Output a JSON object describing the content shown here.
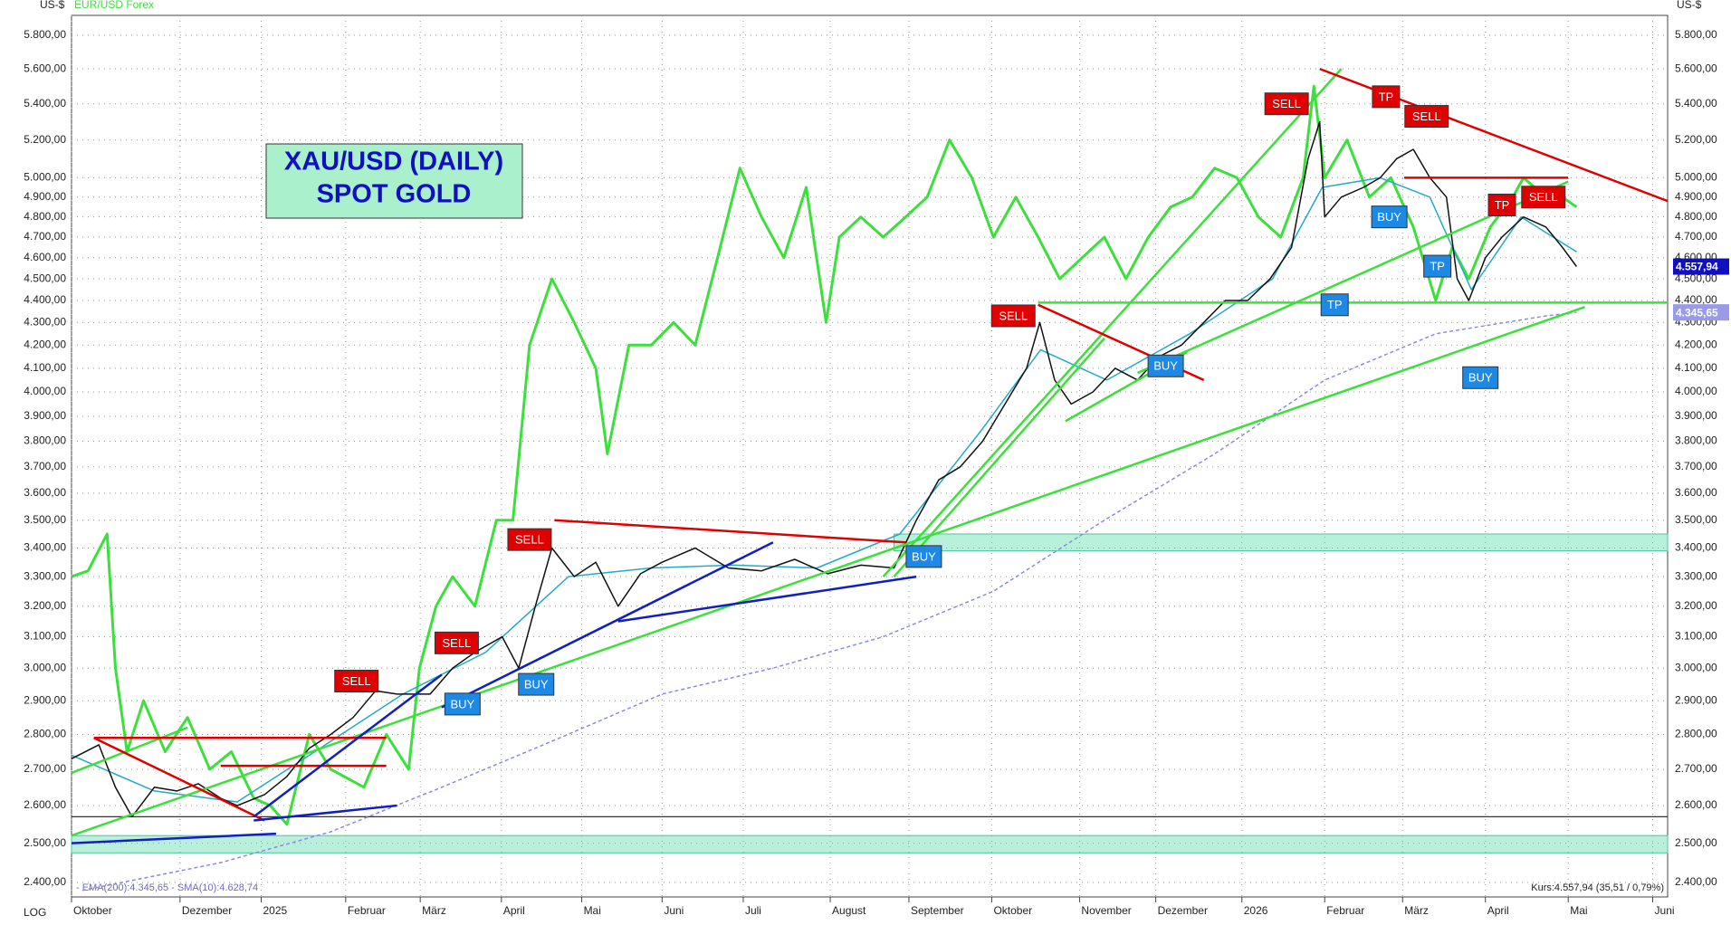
{
  "chart_data": {
    "type": "financial",
    "title": "XAU/USD (DAILY)",
    "subtitle": "SPOT GOLD",
    "y_unit": "US-$",
    "scale_label": "LOG",
    "indicator_legend": "- EMA(200):4.345,65 - SMA(10):4.628,74",
    "quote": "Kurs:4.557,94 (35,51 / 0,79%)",
    "log_scale": true,
    "grid": true,
    "xlim": [
      0,
      19.27
    ],
    "ylim": [
      2364,
      5921
    ],
    "xticks": [
      {
        "value": 0,
        "label": "Oktober"
      },
      {
        "value": 1.31,
        "label": "Dezember"
      },
      {
        "value": 2.29,
        "label": "2025"
      },
      {
        "value": 3.31,
        "label": "Februar"
      },
      {
        "value": 4.21,
        "label": "März"
      },
      {
        "value": 5.19,
        "label": "April"
      },
      {
        "value": 6.16,
        "label": "Mai"
      },
      {
        "value": 7.13,
        "label": "Juni"
      },
      {
        "value": 8.11,
        "label": "Juli"
      },
      {
        "value": 9.16,
        "label": "August"
      },
      {
        "value": 10.11,
        "label": "September"
      },
      {
        "value": 11.11,
        "label": "Oktober"
      },
      {
        "value": 12.17,
        "label": "November"
      },
      {
        "value": 13.09,
        "label": "Dezember"
      },
      {
        "value": 14.13,
        "label": "2026"
      },
      {
        "value": 15.13,
        "label": "Februar"
      },
      {
        "value": 16.07,
        "label": "März"
      },
      {
        "value": 17.07,
        "label": "April"
      },
      {
        "value": 18.07,
        "label": "Mai"
      },
      {
        "value": 19.09,
        "label": "Juni"
      }
    ],
    "yticks": [
      {
        "value": 2400,
        "label": "2.400,00"
      },
      {
        "value": 2500,
        "label": "2.500,00"
      },
      {
        "value": 2600,
        "label": "2.600,00"
      },
      {
        "value": 2700,
        "label": "2.700,00"
      },
      {
        "value": 2800,
        "label": "2.800,00"
      },
      {
        "value": 2900,
        "label": "2.900,00"
      },
      {
        "value": 3000,
        "label": "3.000,00"
      },
      {
        "value": 3100,
        "label": "3.100,00"
      },
      {
        "value": 3200,
        "label": "3.200,00"
      },
      {
        "value": 3300,
        "label": "3.300,00"
      },
      {
        "value": 3400,
        "label": "3.400,00"
      },
      {
        "value": 3500,
        "label": "3.500,00"
      },
      {
        "value": 3600,
        "label": "3.600,00"
      },
      {
        "value": 3700,
        "label": "3.700,00"
      },
      {
        "value": 3800,
        "label": "3.800,00"
      },
      {
        "value": 3900,
        "label": "3.900,00"
      },
      {
        "value": 4000,
        "label": "4.000,00"
      },
      {
        "value": 4100,
        "label": "4.100,00"
      },
      {
        "value": 4200,
        "label": "4.200,00"
      },
      {
        "value": 4300,
        "label": "4.300,00"
      },
      {
        "value": 4400,
        "label": "4.400,00"
      },
      {
        "value": 4500,
        "label": "4.500,00"
      },
      {
        "value": 4600,
        "label": "4.600,00"
      },
      {
        "value": 4700,
        "label": "4.700,00"
      },
      {
        "value": 4800,
        "label": "4.800,00"
      },
      {
        "value": 4900,
        "label": "4.900,00"
      },
      {
        "value": 5000,
        "label": "5.000,00"
      },
      {
        "value": 5200,
        "label": "5.200,00"
      },
      {
        "value": 5400,
        "label": "5.400,00"
      },
      {
        "value": 5600,
        "label": "5.600,00"
      },
      {
        "value": 5800,
        "label": "5.800,00"
      }
    ],
    "zones": [
      {
        "color": "#b8f0dc",
        "x": [
          9.93,
          19.27
        ],
        "y": [
          3390,
          3450
        ]
      },
      {
        "color": "#b8f0dc",
        "x": [
          0,
          19.27
        ],
        "y": [
          2475,
          2520
        ]
      }
    ],
    "hlines": [
      {
        "color": "#333333",
        "y": 2570
      }
    ],
    "series": [
      {
        "name": "EUR/USD Forex",
        "color": "#3be03b",
        "width": 3,
        "x": [
          0,
          0.2,
          0.43,
          0.53,
          0.67,
          0.87,
          1.13,
          1.4,
          1.67,
          1.93,
          2.2,
          2.4,
          2.6,
          2.87,
          3.13,
          3.53,
          3.8,
          4.07,
          4.2,
          4.4,
          4.6,
          4.87,
          5.13,
          5.33,
          5.53,
          5.8,
          6.07,
          6.33,
          6.47,
          6.73,
          7,
          7.27,
          7.53,
          7.8,
          8.07,
          8.33,
          8.6,
          8.87,
          9.11,
          9.27,
          9.53,
          9.8,
          10.07,
          10.33,
          10.6,
          10.87,
          11.13,
          11.4,
          11.67,
          11.93,
          12.2,
          12.47,
          12.73,
          13,
          13.27,
          13.53,
          13.8,
          14.07,
          14.33,
          14.6,
          14.87,
          15,
          15.13,
          15.4,
          15.67,
          15.93,
          16.2,
          16.47,
          16.67,
          16.87,
          17.13,
          17.4,
          17.53,
          17.8,
          18,
          18.17
        ],
        "values": [
          3300,
          3320,
          3450,
          3000,
          2750,
          2900,
          2750,
          2850,
          2700,
          2750,
          2620,
          2600,
          2550,
          2800,
          2700,
          2650,
          2800,
          2700,
          3000,
          3200,
          3300,
          3200,
          3500,
          3500,
          4200,
          4500,
          4300,
          4100,
          3750,
          4200,
          4200,
          4300,
          4200,
          4600,
          5050,
          4800,
          4600,
          4950,
          4300,
          4700,
          4800,
          4700,
          4800,
          4900,
          5200,
          5000,
          4700,
          4900,
          4700,
          4500,
          4600,
          4700,
          4500,
          4700,
          4850,
          4900,
          5050,
          5000,
          4800,
          4700,
          5000,
          5500,
          5000,
          5200,
          4900,
          5000,
          4750,
          4400,
          4650,
          4500,
          4750,
          4900,
          5000,
          4900,
          4900,
          4850
        ]
      },
      {
        "color": "#8a8ae6",
        "width": 1.5,
        "dash": true,
        "x": [
          0.13,
          1.8,
          3.13,
          4.47,
          5.8,
          7.13,
          8.47,
          9.8,
          11.13,
          12.47,
          13.8,
          15.13,
          16.47,
          17.8,
          18.17
        ],
        "values": [
          2380,
          2450,
          2530,
          2650,
          2780,
          2920,
          3000,
          3100,
          3250,
          3500,
          3750,
          4050,
          4250,
          4330,
          4345.65
        ]
      },
      {
        "color": "#22aacc",
        "width": 1.5,
        "x": [
          0,
          1,
          2,
          3,
          4,
          5,
          6,
          7,
          8,
          9,
          10,
          11,
          11.7,
          12.5,
          13.5,
          14.5,
          15.1,
          15.8,
          16.4,
          16.9,
          17.5,
          18.17
        ],
        "values": [
          2740,
          2640,
          2610,
          2760,
          2920,
          3050,
          3300,
          3330,
          3340,
          3330,
          3450,
          3850,
          4180,
          4050,
          4250,
          4500,
          4950,
          5000,
          4900,
          4450,
          4800,
          4628.74
        ]
      },
      {
        "color": "#111111",
        "width": 1.5,
        "x": [
          0,
          0.33,
          0.53,
          0.73,
          1,
          1.27,
          1.53,
          1.8,
          2,
          2.33,
          2.6,
          2.87,
          3.13,
          3.4,
          3.67,
          3.93,
          4.33,
          4.6,
          4.87,
          5.2,
          5.4,
          5.6,
          5.8,
          6.07,
          6.33,
          6.6,
          6.87,
          7.13,
          7.53,
          7.93,
          8.33,
          8.73,
          9.13,
          9.53,
          9.93,
          10.2,
          10.47,
          10.73,
          11,
          11.27,
          11.53,
          11.69,
          11.87,
          12.07,
          12.33,
          12.6,
          12.87,
          13.13,
          13.4,
          13.67,
          13.93,
          14.2,
          14.47,
          14.73,
          14.93,
          15.07,
          15.13,
          15.33,
          15.6,
          15.8,
          16,
          16.2,
          16.4,
          16.6,
          16.73,
          16.87,
          17.07,
          17.27,
          17.53,
          17.8,
          18,
          18.17
        ],
        "values": [
          2730,
          2770,
          2650,
          2570,
          2650,
          2640,
          2660,
          2620,
          2600,
          2630,
          2680,
          2760,
          2800,
          2850,
          2930,
          2920,
          2920,
          3000,
          3050,
          3100,
          3000,
          3200,
          3400,
          3300,
          3350,
          3200,
          3310,
          3350,
          3400,
          3330,
          3320,
          3360,
          3310,
          3340,
          3330,
          3500,
          3650,
          3700,
          3800,
          3950,
          4100,
          4300,
          4050,
          3950,
          4000,
          4100,
          4050,
          4150,
          4200,
          4300,
          4400,
          4400,
          4500,
          4650,
          5100,
          5300,
          4800,
          4900,
          4950,
          5000,
          5100,
          5150,
          5000,
          4900,
          4500,
          4400,
          4600,
          4700,
          4800,
          4750,
          4650,
          4557.94
        ]
      }
    ],
    "trendlines": [
      {
        "color": "#3be03b",
        "x": [
          0,
          18.27
        ],
        "y": [
          2520,
          4370
        ]
      },
      {
        "color": "#3be03b",
        "x": [
          0,
          1.4
        ],
        "y": [
          2690,
          2820
        ]
      },
      {
        "color": "#3be03b",
        "x": [
          9.8,
          15.33
        ],
        "y": [
          3300,
          5600
        ]
      },
      {
        "color": "#3be03b",
        "x": [
          12.87,
          18.07
        ],
        "y": [
          4080,
          4980
        ]
      },
      {
        "color": "#3be03b",
        "x": [
          9.93,
          12.47
        ],
        "y": [
          3300,
          4230
        ]
      },
      {
        "color": "#3be03b",
        "x": [
          12,
          13.47
        ],
        "y": [
          3880,
          4170
        ]
      },
      {
        "color": "#3be03b",
        "x": [
          11.67,
          19.27
        ],
        "y": [
          4390,
          4390
        ]
      },
      {
        "color": "#e00000",
        "x": [
          0.27,
          3.8
        ],
        "y": [
          2790,
          2790
        ]
      },
      {
        "color": "#e00000",
        "x": [
          0.27,
          2.33
        ],
        "y": [
          2790,
          2560
        ]
      },
      {
        "color": "#e00000",
        "x": [
          1.8,
          3.8
        ],
        "y": [
          2710,
          2710
        ]
      },
      {
        "color": "#e00000",
        "x": [
          5.83,
          10.07
        ],
        "y": [
          3500,
          3420
        ]
      },
      {
        "color": "#e00000",
        "x": [
          11.67,
          13.67
        ],
        "y": [
          4380,
          4050
        ]
      },
      {
        "color": "#e00000",
        "x": [
          15.07,
          19.27
        ],
        "y": [
          5600,
          4880
        ]
      },
      {
        "color": "#e00000",
        "x": [
          16.09,
          18.07
        ],
        "y": [
          5000,
          5000
        ]
      },
      {
        "color": "#1020c0",
        "x": [
          0,
          2.47
        ],
        "y": [
          2500,
          2525
        ]
      },
      {
        "color": "#1020c0",
        "x": [
          2.2,
          3.93
        ],
        "y": [
          2560,
          2600
        ]
      },
      {
        "color": "#1020c0",
        "x": [
          2.2,
          4.47
        ],
        "y": [
          2570,
          2980
        ]
      },
      {
        "color": "#1020c0",
        "x": [
          4.47,
          8.47
        ],
        "y": [
          2880,
          3420
        ]
      },
      {
        "color": "#1020c0",
        "x": [
          6.6,
          10.2
        ],
        "y": [
          3150,
          3300
        ]
      }
    ],
    "signals": [
      {
        "label": "SELL",
        "color": "#e00000",
        "x": 3.44,
        "y": 2960
      },
      {
        "label": "BUY",
        "color": "#1e88e5",
        "x": 4.72,
        "y": 2890
      },
      {
        "label": "SELL",
        "color": "#e00000",
        "x": 4.65,
        "y": 3080
      },
      {
        "label": "BUY",
        "color": "#1e88e5",
        "x": 5.61,
        "y": 2950
      },
      {
        "label": "SELL",
        "color": "#e00000",
        "x": 5.53,
        "y": 3430
      },
      {
        "label": "BUY",
        "color": "#1e88e5",
        "x": 10.29,
        "y": 3370
      },
      {
        "label": "SELL",
        "color": "#e00000",
        "x": 11.37,
        "y": 4330
      },
      {
        "label": "BUY",
        "color": "#1e88e5",
        "x": 13.21,
        "y": 4110
      },
      {
        "label": "SELL",
        "color": "#e00000",
        "x": 14.67,
        "y": 5400
      },
      {
        "label": "TP",
        "color": "#1e88e5",
        "x": 15.25,
        "y": 4380
      },
      {
        "label": "TP",
        "color": "#e00000",
        "x": 15.87,
        "y": 5440
      },
      {
        "label": "SELL",
        "color": "#e00000",
        "x": 16.36,
        "y": 5330
      },
      {
        "label": "BUY",
        "color": "#1e88e5",
        "x": 15.91,
        "y": 4800
      },
      {
        "label": "TP",
        "color": "#1e88e5",
        "x": 16.49,
        "y": 4560
      },
      {
        "label": "BUY",
        "color": "#1e88e5",
        "x": 17.01,
        "y": 4060
      },
      {
        "label": "TP",
        "color": "#e00000",
        "x": 17.27,
        "y": 4860
      },
      {
        "label": "SELL",
        "color": "#e00000",
        "x": 17.77,
        "y": 4900
      }
    ],
    "price_tags": [
      {
        "value": 4557.94,
        "label": "4.557,94",
        "color": "#1010c0"
      },
      {
        "value": 4345.65,
        "label": "4.345,65",
        "color": "#9a9ae8"
      }
    ]
  }
}
